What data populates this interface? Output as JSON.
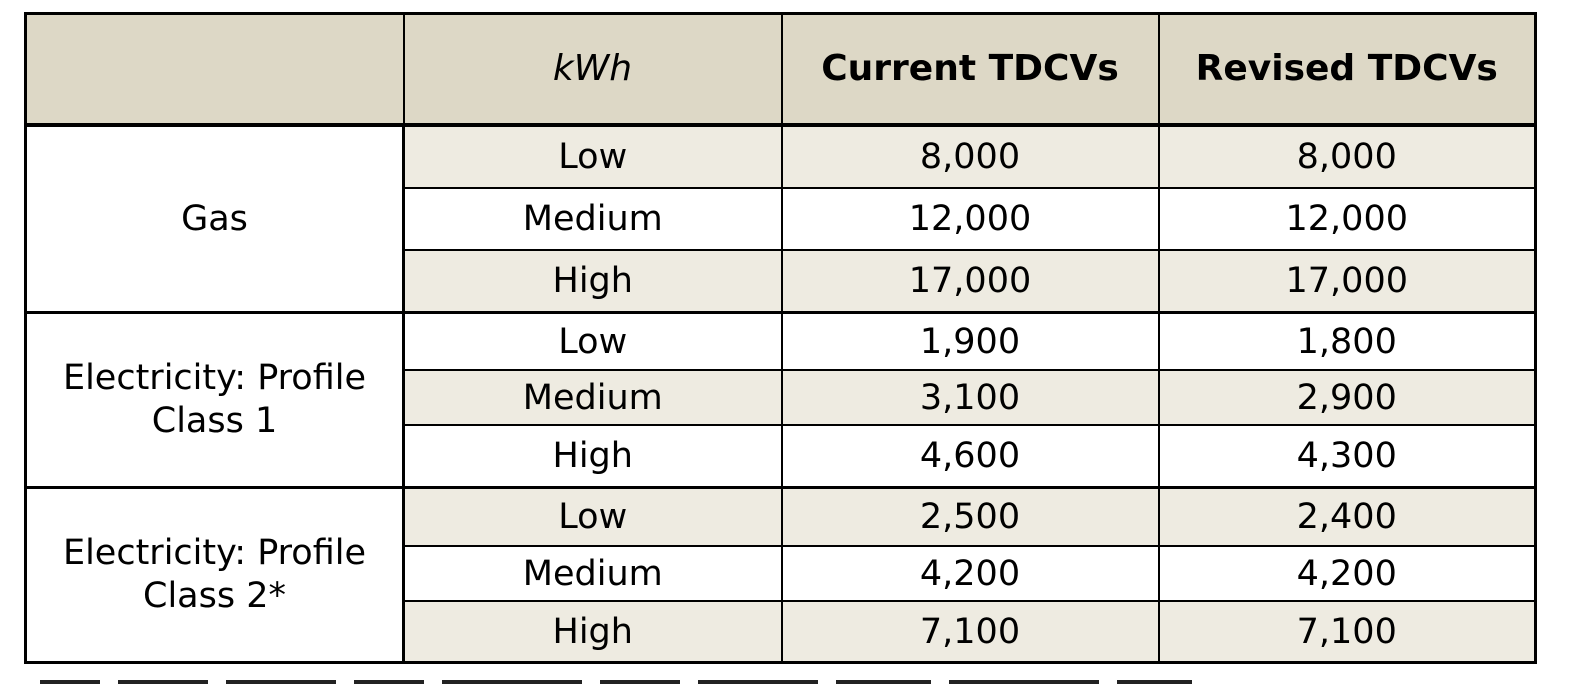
{
  "table": {
    "headers": [
      "",
      "kWh",
      "Current TDCVs",
      "Revised TDCVs"
    ],
    "groups": [
      {
        "label_lines": [
          "Gas"
        ],
        "rows": [
          {
            "level": "Low",
            "current": "8,000",
            "revised": "8,000"
          },
          {
            "level": "Medium",
            "current": "12,000",
            "revised": "12,000"
          },
          {
            "level": "High",
            "current": "17,000",
            "revised": "17,000"
          }
        ]
      },
      {
        "label_lines": [
          "Electricity: Profile",
          "Class 1"
        ],
        "rows": [
          {
            "level": "Low",
            "current": "1,900",
            "revised": "1,800"
          },
          {
            "level": "Medium",
            "current": "3,100",
            "revised": "2,900"
          },
          {
            "level": "High",
            "current": "4,600",
            "revised": "4,300"
          }
        ]
      },
      {
        "label_lines": [
          "Electricity: Profile",
          "Class 2*"
        ],
        "rows": [
          {
            "level": "Low",
            "current": "2,500",
            "revised": "2,400"
          },
          {
            "level": "Medium",
            "current": "4,200",
            "revised": "4,200"
          },
          {
            "level": "High",
            "current": "7,100",
            "revised": "7,100"
          }
        ]
      }
    ]
  },
  "colors": {
    "header_bg": "#ddd8c6",
    "shaded_row_bg": "#eeebe1",
    "border": "#000000"
  }
}
